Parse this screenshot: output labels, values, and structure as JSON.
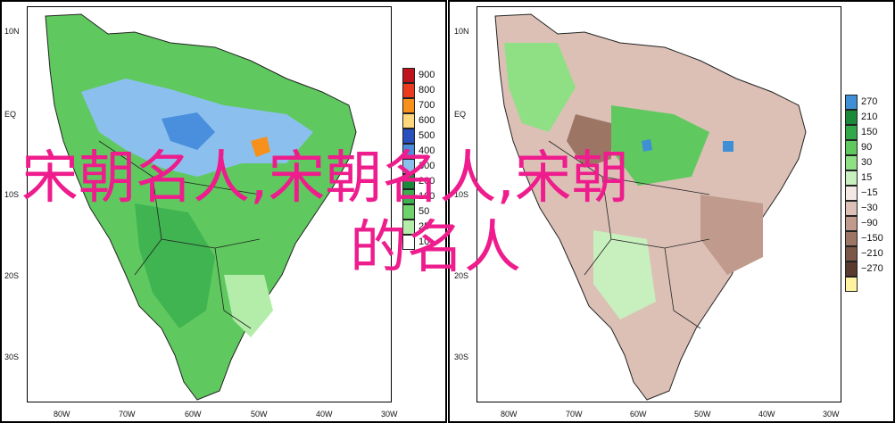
{
  "overlay": {
    "line1": "宋朝名人,宋朝名人,宋朝",
    "line2": "的名人"
  },
  "left_map": {
    "lat_labels": [
      "10N",
      "EQ",
      "10S",
      "20S",
      "30S"
    ],
    "lon_labels": [
      "80W",
      "70W",
      "60W",
      "50W",
      "40W",
      "30W"
    ],
    "legend": [
      {
        "label": "900",
        "color": "#c0141d"
      },
      {
        "label": "800",
        "color": "#ea3b1f"
      },
      {
        "label": "700",
        "color": "#f8901c"
      },
      {
        "label": "600",
        "color": "#ffd77d"
      },
      {
        "label": "500",
        "color": "#2a4fbf"
      },
      {
        "label": "400",
        "color": "#4a8ede"
      },
      {
        "label": "300",
        "color": "#8bc0ee"
      },
      {
        "label": "200",
        "color": "#1a8a3a"
      },
      {
        "label": "100",
        "color": "#3ab04f"
      },
      {
        "label": "50",
        "color": "#6fd36b"
      },
      {
        "label": "25",
        "color": "#b4ecaa"
      },
      {
        "label": "10",
        "color": "#ffffff"
      }
    ]
  },
  "right_map": {
    "lat_labels": [
      "10N",
      "EQ",
      "10S",
      "20S",
      "30S"
    ],
    "lon_labels": [
      "80W",
      "70W",
      "60W",
      "50W",
      "40W",
      "30W"
    ],
    "legend": [
      {
        "label": "270",
        "color": "#3f8fd6"
      },
      {
        "label": "210",
        "color": "#1a8a3a"
      },
      {
        "label": "150",
        "color": "#33a84a"
      },
      {
        "label": "90",
        "color": "#5fc95f"
      },
      {
        "label": "30",
        "color": "#8fdf85"
      },
      {
        "label": "15",
        "color": "#c8f0be"
      },
      {
        "label": "−15",
        "color": "#f3e8e4"
      },
      {
        "label": "−30",
        "color": "#dcc0b6"
      },
      {
        "label": "−90",
        "color": "#c09a8c"
      },
      {
        "label": "−150",
        "color": "#9d7565"
      },
      {
        "label": "−210",
        "color": "#7c5646"
      },
      {
        "label": "−270",
        "color": "#5a3a2e"
      },
      {
        "label": "",
        "color": "#fff2a0"
      }
    ]
  }
}
